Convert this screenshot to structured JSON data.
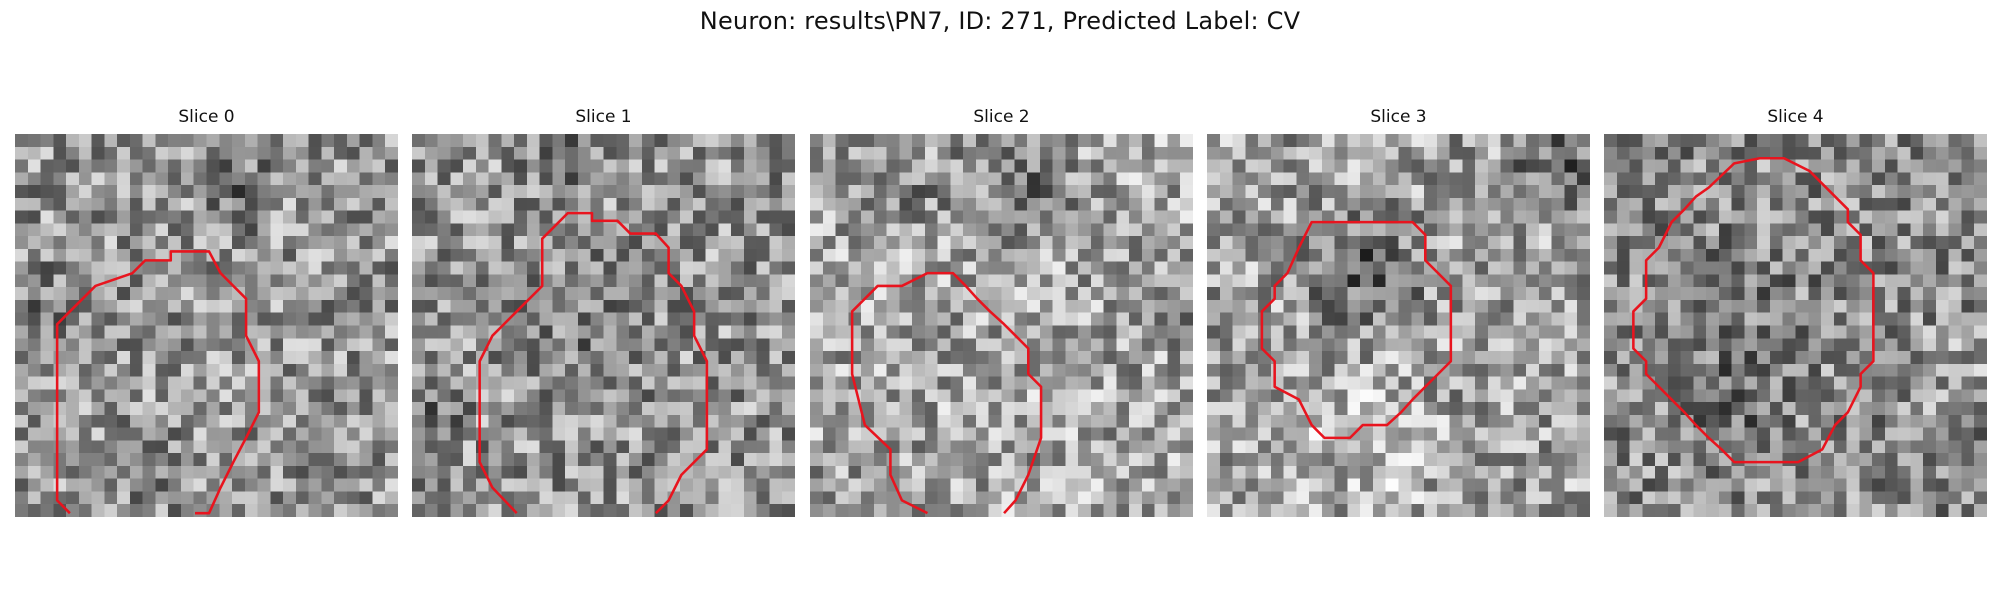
{
  "figure": {
    "title": "Neuron: results\\PN7, ID: 271, Predicted Label: CV"
  },
  "contour_color": "#e8141e",
  "panels": [
    {
      "title": "Slice 0",
      "contour": {
        "closed": false,
        "points": [
          [
            4.3,
            29.7
          ],
          [
            3.3,
            28.7
          ],
          [
            3.3,
            16.8
          ],
          [
            3.3,
            14.9
          ],
          [
            4.3,
            13.9
          ],
          [
            6.3,
            11.9
          ],
          [
            9.2,
            10.9
          ],
          [
            10.2,
            9.9
          ],
          [
            12.2,
            9.9
          ],
          [
            12.2,
            9.2
          ],
          [
            15.2,
            9.2
          ],
          [
            16.1,
            10.9
          ],
          [
            18.1,
            12.9
          ],
          [
            18.1,
            15.8
          ],
          [
            19.1,
            17.8
          ],
          [
            19.1,
            21.8
          ],
          [
            18.6,
            22.8
          ],
          [
            18.1,
            23.8
          ],
          [
            17.1,
            25.7
          ],
          [
            16.1,
            27.7
          ],
          [
            15.2,
            29.7
          ],
          [
            14.1,
            29.7
          ]
        ]
      }
    },
    {
      "title": "Slice 1",
      "contour": {
        "closed": false,
        "points": [
          [
            8.2,
            29.7
          ],
          [
            6.3,
            27.7
          ],
          [
            5.3,
            25.7
          ],
          [
            5.3,
            24.7
          ],
          [
            5.3,
            17.8
          ],
          [
            6.3,
            15.8
          ],
          [
            8.2,
            13.9
          ],
          [
            10.2,
            11.9
          ],
          [
            10.2,
            9.9
          ],
          [
            10.2,
            8.2
          ],
          [
            11.2,
            7.2
          ],
          [
            12.2,
            6.2
          ],
          [
            14.1,
            6.2
          ],
          [
            14.1,
            6.8
          ],
          [
            16.1,
            6.8
          ],
          [
            17.1,
            7.8
          ],
          [
            19.1,
            7.8
          ],
          [
            20.1,
            8.9
          ],
          [
            20.1,
            10.9
          ],
          [
            21.1,
            11.9
          ],
          [
            22.1,
            13.9
          ],
          [
            22.1,
            15.8
          ],
          [
            23.1,
            17.8
          ],
          [
            23.1,
            24.7
          ],
          [
            21.1,
            26.7
          ],
          [
            20.1,
            28.7
          ],
          [
            19.1,
            29.7
          ]
        ]
      }
    },
    {
      "title": "Slice 2",
      "contour": {
        "closed": false,
        "points": [
          [
            9.2,
            29.7
          ],
          [
            7.2,
            28.7
          ],
          [
            6.3,
            26.7
          ],
          [
            6.3,
            24.7
          ],
          [
            4.3,
            22.8
          ],
          [
            3.3,
            18.8
          ],
          [
            3.3,
            13.9
          ],
          [
            4.3,
            12.9
          ],
          [
            5.3,
            11.9
          ],
          [
            7.2,
            11.9
          ],
          [
            9.2,
            10.9
          ],
          [
            11.2,
            10.9
          ],
          [
            12.2,
            11.9
          ],
          [
            13.1,
            12.9
          ],
          [
            14.1,
            13.9
          ],
          [
            15.2,
            14.9
          ],
          [
            16.1,
            15.8
          ],
          [
            17.1,
            16.8
          ],
          [
            17.1,
            18.8
          ],
          [
            18.1,
            19.8
          ],
          [
            18.1,
            21.8
          ],
          [
            18.1,
            23.8
          ],
          [
            17.1,
            26.7
          ],
          [
            16.1,
            28.7
          ],
          [
            15.2,
            29.7
          ]
        ]
      }
    },
    {
      "title": "Slice 3",
      "contour": {
        "closed": true,
        "points": [
          [
            5.3,
            17.8
          ],
          [
            4.3,
            16.8
          ],
          [
            4.3,
            13.9
          ],
          [
            5.3,
            12.9
          ],
          [
            5.3,
            11.9
          ],
          [
            6.3,
            10.9
          ],
          [
            7.2,
            8.9
          ],
          [
            8.2,
            6.9
          ],
          [
            9.2,
            6.9
          ],
          [
            16.1,
            6.9
          ],
          [
            17.1,
            7.9
          ],
          [
            17.1,
            9.9
          ],
          [
            18.1,
            10.9
          ],
          [
            19.1,
            11.9
          ],
          [
            19.1,
            13.9
          ],
          [
            19.1,
            17.8
          ],
          [
            18.1,
            18.8
          ],
          [
            17.1,
            19.8
          ],
          [
            16.1,
            20.8
          ],
          [
            15.2,
            21.8
          ],
          [
            14.1,
            22.8
          ],
          [
            12.2,
            22.8
          ],
          [
            11.2,
            23.8
          ],
          [
            10.2,
            23.8
          ],
          [
            9.2,
            23.8
          ],
          [
            8.2,
            22.8
          ],
          [
            7.2,
            20.8
          ],
          [
            5.3,
            19.8
          ]
        ]
      }
    },
    {
      "title": "Slice 4",
      "contour": {
        "closed": true,
        "points": [
          [
            3.3,
            17.8
          ],
          [
            2.3,
            16.8
          ],
          [
            2.3,
            13.9
          ],
          [
            3.3,
            12.9
          ],
          [
            3.3,
            9.9
          ],
          [
            4.3,
            8.9
          ],
          [
            5.3,
            6.9
          ],
          [
            6.3,
            5.9
          ],
          [
            7.2,
            4.9
          ],
          [
            8.2,
            4.2
          ],
          [
            10.2,
            2.3
          ],
          [
            12.2,
            1.9
          ],
          [
            14.1,
            1.9
          ],
          [
            16.1,
            2.9
          ],
          [
            17.1,
            3.9
          ],
          [
            18.1,
            4.9
          ],
          [
            19.1,
            5.9
          ],
          [
            19.1,
            6.9
          ],
          [
            20.1,
            7.9
          ],
          [
            20.1,
            9.9
          ],
          [
            21.1,
            10.9
          ],
          [
            21.1,
            17.8
          ],
          [
            20.1,
            18.8
          ],
          [
            20.1,
            19.8
          ],
          [
            19.1,
            21.8
          ],
          [
            18.1,
            22.8
          ],
          [
            17.1,
            24.7
          ],
          [
            15.2,
            25.7
          ],
          [
            12.2,
            25.7
          ],
          [
            10.2,
            25.7
          ],
          [
            9.2,
            24.7
          ],
          [
            8.2,
            23.8
          ],
          [
            7.2,
            22.8
          ],
          [
            6.3,
            21.8
          ],
          [
            5.3,
            20.8
          ],
          [
            4.3,
            19.8
          ],
          [
            3.3,
            18.8
          ]
        ]
      }
    }
  ]
}
